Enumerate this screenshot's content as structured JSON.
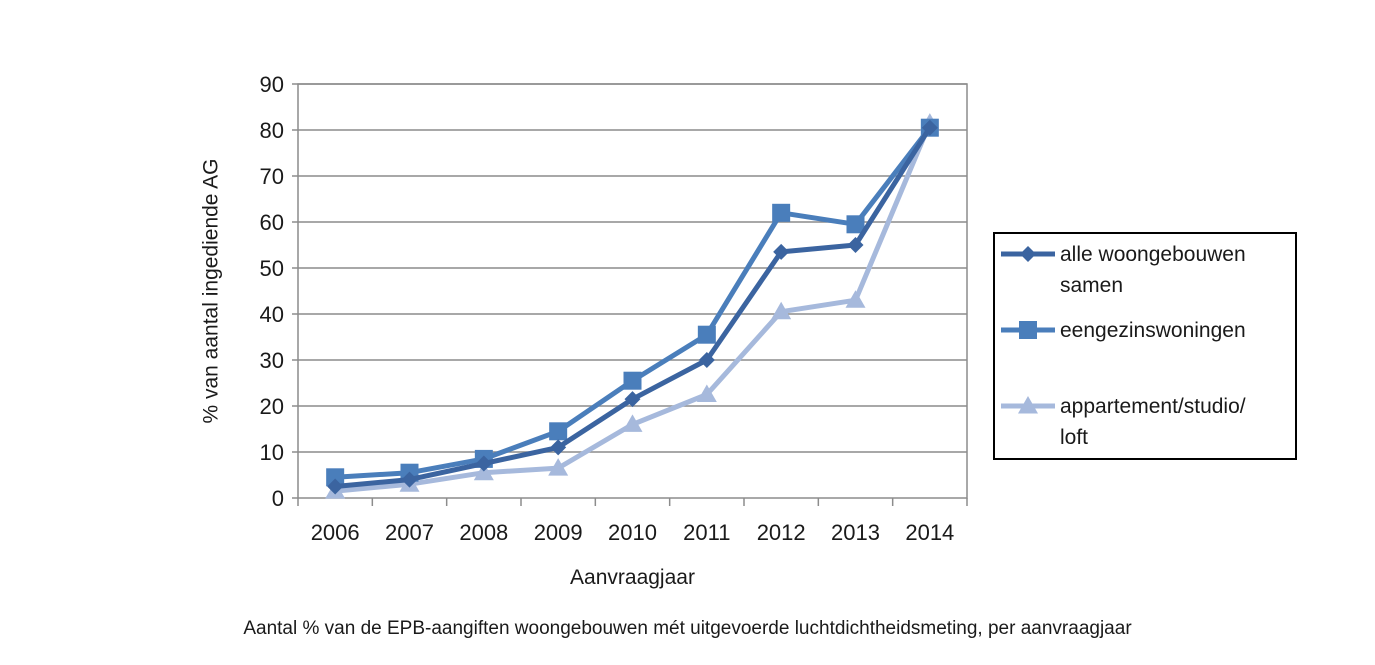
{
  "chart_data": {
    "type": "line",
    "categories": [
      "2006",
      "2007",
      "2008",
      "2009",
      "2010",
      "2011",
      "2012",
      "2013",
      "2014"
    ],
    "xlabel": "Aanvraagjaar",
    "ylabel": "% van aantal ingediende AG",
    "ylim": [
      0,
      90
    ],
    "yticks": [
      0,
      10,
      20,
      30,
      40,
      50,
      60,
      70,
      80,
      90
    ],
    "grid": true,
    "legend_position": "right",
    "series": [
      {
        "name": "alle woongebouwen samen",
        "name_lines": [
          "alle woongebouwen",
          "samen"
        ],
        "marker": "diamond",
        "color": "#3b64a0",
        "values": [
          2.5,
          4,
          7.5,
          11,
          21.5,
          30,
          53.5,
          55,
          80.5
        ]
      },
      {
        "name": "eengezinswoningen",
        "name_lines": [
          "eengezinswoningen"
        ],
        "marker": "square",
        "color": "#4a7ebb",
        "values": [
          4.5,
          5.5,
          8.5,
          14.5,
          25.5,
          35.5,
          62,
          59.5,
          80.5
        ]
      },
      {
        "name": "appartement/studio/loft",
        "name_lines": [
          "appartement/studio/",
          "loft"
        ],
        "marker": "triangle",
        "color": "#a6b9dc",
        "values": [
          1.5,
          3,
          5.5,
          6.5,
          16,
          22.5,
          40.5,
          43,
          81.5
        ]
      }
    ]
  },
  "caption": "Aantal % van de EPB-aangiften woongebouwen mét uitgevoerde luchtdichtheidsmeting, per aanvraagjaar"
}
